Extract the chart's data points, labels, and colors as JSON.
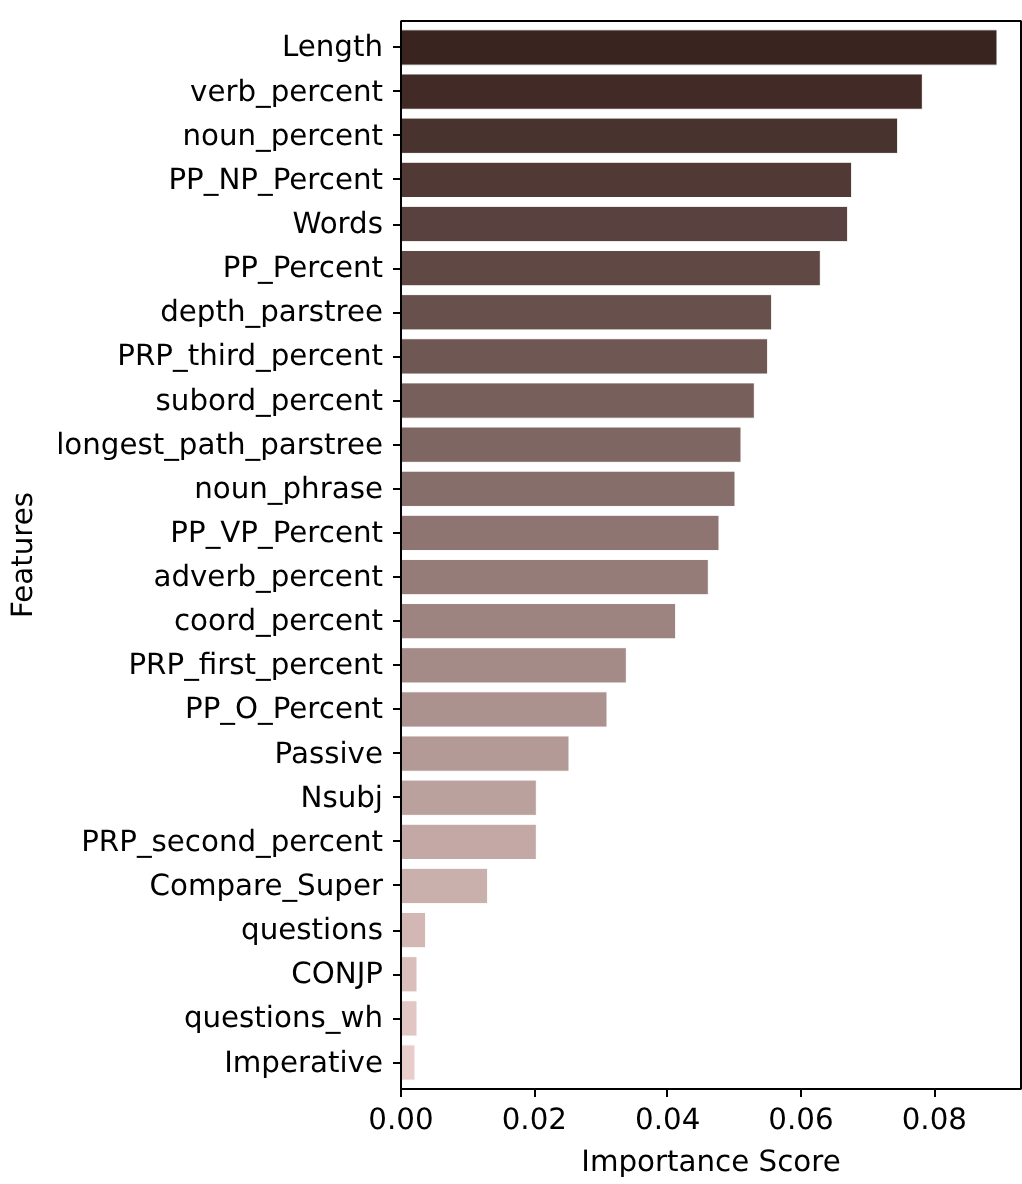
{
  "chart_data": {
    "type": "bar",
    "orientation": "horizontal",
    "xlabel": "Importance Score",
    "ylabel": "Features",
    "categories": [
      "Length",
      "verb_percent",
      "noun_percent",
      "PP_NP_Percent",
      "Words",
      "PP_Percent",
      "depth_parstree",
      "PRP_third_percent",
      "subord_percent",
      "longest_path_parstree",
      "noun_phrase",
      "PP_VP_Percent",
      "adverb_percent",
      "coord_percent",
      "PRP_first_percent",
      "PP_O_Percent",
      "Passive",
      "Nsubj",
      "PRP_second_percent",
      "Compare_Super",
      "questions",
      "CONJP",
      "questions_wh",
      "Imperative"
    ],
    "values": [
      0.0894,
      0.0782,
      0.0745,
      0.0676,
      0.067,
      0.0629,
      0.0556,
      0.055,
      0.053,
      0.051,
      0.0501,
      0.0477,
      0.0461,
      0.0412,
      0.0338,
      0.0309,
      0.0252,
      0.0203,
      0.0203,
      0.013,
      0.0037,
      0.0024,
      0.0024,
      0.0021
    ],
    "colors": [
      "#3a2420",
      "#422b27",
      "#49332f",
      "#513a36",
      "#58413e",
      "#604945",
      "#68504c",
      "#6f5754",
      "#775f5b",
      "#7e6663",
      "#866e6a",
      "#8e7571",
      "#957c79",
      "#9d8480",
      "#a48b88",
      "#ac928f",
      "#b49a96",
      "#bba19e",
      "#c3a8a5",
      "#cab0ad",
      "#d2b7b4",
      "#dabebb",
      "#e1c6c3",
      "#e9cdca"
    ],
    "xlim": [
      0,
      0.093
    ],
    "xticks": [
      {
        "value": 0,
        "label": "0.00"
      },
      {
        "value": 0.02,
        "label": "0.02"
      },
      {
        "value": 0.04,
        "label": "0.04"
      },
      {
        "value": 0.06,
        "label": "0.06"
      },
      {
        "value": 0.08,
        "label": "0.08"
      }
    ],
    "grid": false
  }
}
